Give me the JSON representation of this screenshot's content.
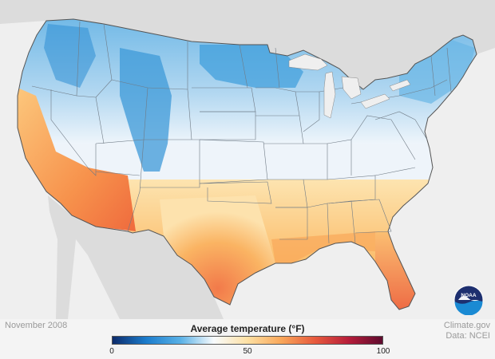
{
  "footer": {
    "date": "November 2008",
    "credit_line1": "Climate.gov",
    "credit_line2": "Data: NCEI"
  },
  "legend": {
    "title": "Average temperature (°F)",
    "min": 0,
    "mid": 50,
    "max": 100,
    "tick_labels": [
      "0",
      "50",
      "100"
    ],
    "colors": [
      "#0d2b6b",
      "#1b7ccc",
      "#58b0e6",
      "#f8fbfd",
      "#fde0a3",
      "#f9a75a",
      "#e75a3d",
      "#b61d3a",
      "#5e0b2e"
    ]
  },
  "logo": {
    "text": "NOAA",
    "colors": {
      "navy": "#1d2f6f",
      "blue": "#1a8ad3"
    }
  },
  "map": {
    "region": "Contiguous United States",
    "land_color": "#dcdcdc",
    "water_color": "#efefef",
    "state_border_color": "#6f7a85"
  }
}
